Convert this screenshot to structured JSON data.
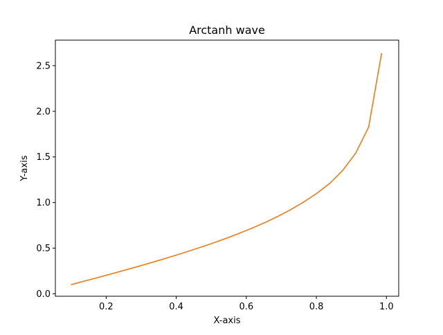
{
  "chart_data": {
    "type": "line",
    "title": "Arctanh wave",
    "xlabel": "X-axis",
    "ylabel": "Y-axis",
    "xlim": [
      0.055,
      1.035
    ],
    "ylim": [
      -0.027,
      2.78
    ],
    "xticks": [
      {
        "value": 0.2,
        "label": "0.2"
      },
      {
        "value": 0.4,
        "label": "0.4"
      },
      {
        "value": 0.6,
        "label": "0.6"
      },
      {
        "value": 0.8,
        "label": "0.8"
      },
      {
        "value": 1.0,
        "label": "1.0"
      }
    ],
    "yticks": [
      {
        "value": 0.0,
        "label": "0.0"
      },
      {
        "value": 0.5,
        "label": "0.5"
      },
      {
        "value": 1.0,
        "label": "1.0"
      },
      {
        "value": 1.5,
        "label": "1.5"
      },
      {
        "value": 2.0,
        "label": "2.0"
      },
      {
        "value": 2.5,
        "label": "2.5"
      }
    ],
    "grid": false,
    "legend": "none",
    "series": [
      {
        "color": "#1f77b4",
        "x": [
          0.1,
          0.1369,
          0.1738,
          0.2108,
          0.2477,
          0.2846,
          0.3215,
          0.3585,
          0.3954,
          0.4323,
          0.4692,
          0.5062,
          0.5431,
          0.58,
          0.6169,
          0.6538,
          0.6908,
          0.7277,
          0.7646,
          0.8015,
          0.8385,
          0.8754,
          0.9123,
          0.9492,
          0.9862
        ],
        "y": [
          0.1003,
          0.1378,
          0.1756,
          0.214,
          0.2529,
          0.2927,
          0.3333,
          0.3752,
          0.4183,
          0.4628,
          0.5092,
          0.5574,
          0.6084,
          0.6625,
          0.72,
          0.7818,
          0.8496,
          0.9243,
          1.0073,
          1.1014,
          1.2114,
          1.3531,
          1.5417,
          1.8271,
          2.6366
        ]
      },
      {
        "color": "#ff7f0e",
        "x": [
          0.1,
          0.1369,
          0.1738,
          0.2108,
          0.2477,
          0.2846,
          0.3215,
          0.3585,
          0.3954,
          0.4323,
          0.4692,
          0.5062,
          0.5431,
          0.58,
          0.6169,
          0.6538,
          0.6908,
          0.7277,
          0.7646,
          0.8015,
          0.8385,
          0.8754,
          0.9123,
          0.9492,
          0.9862
        ],
        "y": [
          0.1003,
          0.1378,
          0.1756,
          0.214,
          0.2529,
          0.2927,
          0.3333,
          0.3752,
          0.4183,
          0.4628,
          0.5092,
          0.5574,
          0.6084,
          0.6625,
          0.72,
          0.7818,
          0.8496,
          0.9243,
          1.0073,
          1.1014,
          1.2114,
          1.3531,
          1.5417,
          1.8271,
          2.6366
        ]
      }
    ]
  }
}
